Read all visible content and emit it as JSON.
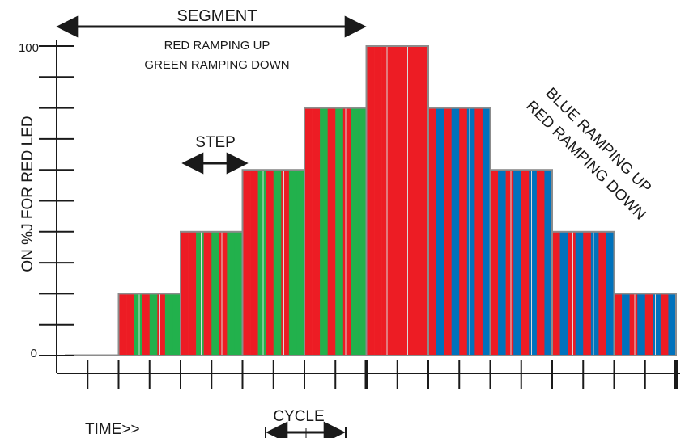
{
  "labels": {
    "segment": "SEGMENT",
    "segment_desc_1": "RED RAMPING UP",
    "segment_desc_2": "GREEN RAMPING DOWN",
    "step": "STEP",
    "cycle": "CYCLE",
    "time": "TIME>>",
    "y_axis": "ON %J FOR RED LED",
    "y_top": "100",
    "y_bottom": "0",
    "ramp_desc_1": "BLUE RAMPING UP",
    "ramp_desc_2": "RED RAMPING DOWN"
  },
  "colors": {
    "red": "#ed1c24",
    "green": "#22b14c",
    "blue": "#0072bc",
    "outline": "#8c8c8c",
    "axis": "#1a1a1a"
  },
  "chart_data": {
    "type": "bar",
    "ylim": [
      0,
      100
    ],
    "steps": [
      {
        "value": 0,
        "pattern": "none"
      },
      {
        "value": 20,
        "pattern": "red-green"
      },
      {
        "value": 40,
        "pattern": "red-green"
      },
      {
        "value": 60,
        "pattern": "red-green"
      },
      {
        "value": 80,
        "pattern": "red-green"
      },
      {
        "value": 100,
        "pattern": "red-only"
      },
      {
        "value": 80,
        "pattern": "red-blue"
      },
      {
        "value": 60,
        "pattern": "red-blue"
      },
      {
        "value": 40,
        "pattern": "red-blue"
      },
      {
        "value": 20,
        "pattern": "red-blue"
      }
    ]
  }
}
